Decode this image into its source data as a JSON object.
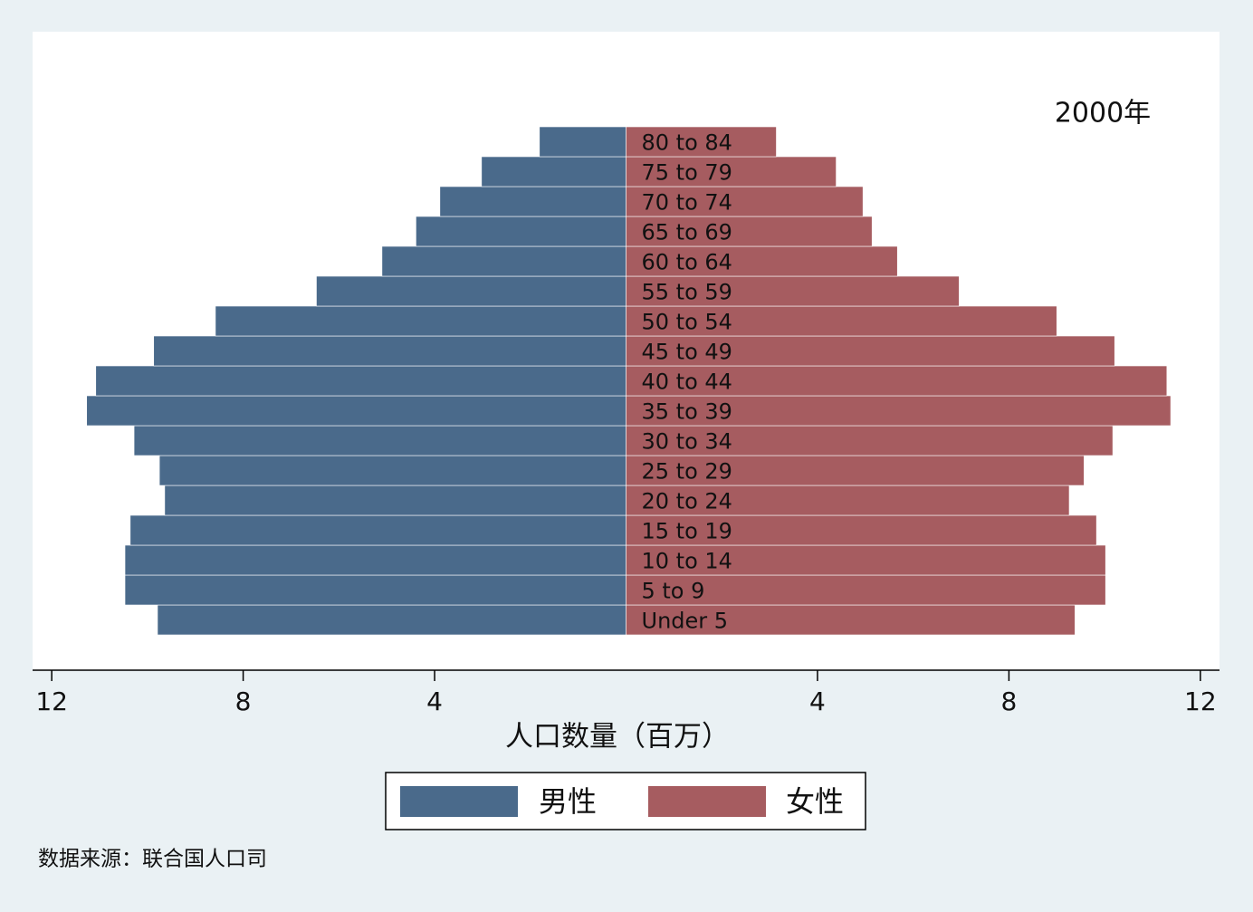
{
  "chart_data": {
    "type": "pyramid",
    "annotation": "2000年",
    "x_label": "人口数量（百万）",
    "source": "数据来源：联合国人口司",
    "categories": [
      "Under 5",
      "5 to 9",
      "10 to 14",
      "15 to 19",
      "20 to 24",
      "25 to 29",
      "30 to 34",
      "35 to 39",
      "40 to 44",
      "45 to 49",
      "50 to 54",
      "55 to 59",
      "60 to 64",
      "65 to 69",
      "70 to 74",
      "75 to 79",
      "80 to 84"
    ],
    "series": [
      {
        "name": "男性",
        "color": "#4a6a8b",
        "side": "left",
        "values": [
          9.79,
          10.47,
          10.47,
          10.36,
          9.64,
          9.75,
          10.28,
          11.27,
          11.08,
          9.87,
          8.58,
          6.47,
          5.1,
          4.39,
          3.89,
          3.02,
          1.81
        ]
      },
      {
        "name": "女性",
        "color": "#a65c60",
        "side": "right",
        "values": [
          9.38,
          10.02,
          10.02,
          9.83,
          9.26,
          9.57,
          10.17,
          11.38,
          11.3,
          10.21,
          9.0,
          6.96,
          5.67,
          5.14,
          4.95,
          4.39,
          3.14
        ]
      }
    ],
    "xlim": [
      -12.4,
      12.4
    ],
    "xticks": [
      {
        "value": -12,
        "label": "12"
      },
      {
        "value": -8,
        "label": "8"
      },
      {
        "value": -4,
        "label": "4"
      },
      4,
      8,
      12
    ]
  }
}
